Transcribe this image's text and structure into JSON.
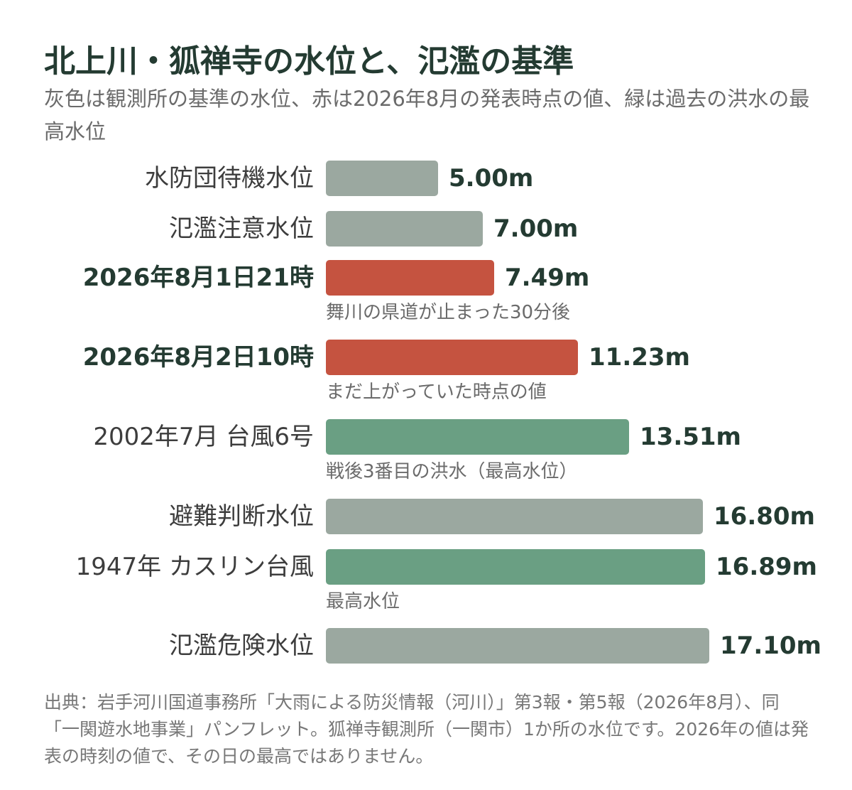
{
  "title": "北上川・狐禅寺の水位と、氾濫の基準",
  "subtitle": "灰色は観測所の基準の水位、赤は2026年8月の発表時点の値、緑は過去の洪水の最高水位",
  "colors": {
    "reference": "#9ba8a0",
    "current": "#c55340",
    "historical": "#6a9f83"
  },
  "chart_data": {
    "type": "bar",
    "orientation": "horizontal",
    "unit": "m",
    "bars": [
      {
        "label": "水防団待機水位",
        "value": 5.0,
        "value_label": "5.00m",
        "kind": "reference",
        "bold": false,
        "note": ""
      },
      {
        "label": "氾濫注意水位",
        "value": 7.0,
        "value_label": "7.00m",
        "kind": "reference",
        "bold": false,
        "note": ""
      },
      {
        "label": "2026年8月1日21時",
        "value": 7.49,
        "value_label": "7.49m",
        "kind": "current",
        "bold": true,
        "note": "舞川の県道が止まった30分後"
      },
      {
        "label": "2026年8月2日10時",
        "value": 11.23,
        "value_label": "11.23m",
        "kind": "current",
        "bold": true,
        "note": "まだ上がっていた時点の値"
      },
      {
        "label": "2002年7月 台風6号",
        "value": 13.51,
        "value_label": "13.51m",
        "kind": "historical",
        "bold": false,
        "note": "戦後3番目の洪水（最高水位）"
      },
      {
        "label": "避難判断水位",
        "value": 16.8,
        "value_label": "16.80m",
        "kind": "reference",
        "bold": false,
        "note": ""
      },
      {
        "label": "1947年 カスリン台風",
        "value": 16.89,
        "value_label": "16.89m",
        "kind": "historical",
        "bold": false,
        "note": "最高水位"
      },
      {
        "label": "氾濫危険水位",
        "value": 17.1,
        "value_label": "17.10m",
        "kind": "reference",
        "bold": false,
        "note": ""
      }
    ]
  },
  "footer": "出典：岩手河川国道事務所「大雨による防災情報（河川）」第3報・第5報（2026年8月）、同「一関遊水地事業」パンフレット。狐禅寺観測所（一関市）1か所の水位です。2026年の値は発表の時刻の値で、その日の最高ではありません。"
}
